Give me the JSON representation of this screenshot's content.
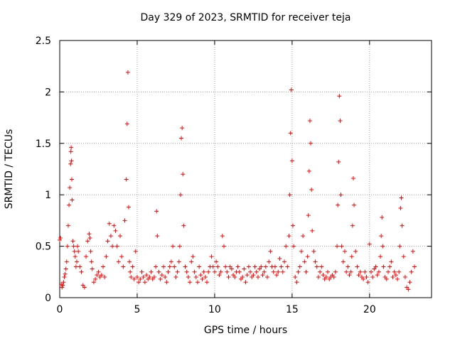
{
  "chart_data": {
    "type": "scatter",
    "title": "Day 329 of 2023, SRMTID for receiver teja",
    "xlabel": "GPS time / hours",
    "ylabel": "SRMTID / TECUs",
    "xlim": [
      0,
      24
    ],
    "ylim": [
      0,
      2.5
    ],
    "x_ticks": [
      0,
      5,
      10,
      15,
      20
    ],
    "x_tick_labels": [
      "0",
      "5",
      "10",
      "15",
      "20"
    ],
    "y_ticks": [
      0,
      0.5,
      1,
      1.5,
      2,
      2.5
    ],
    "y_tick_labels": [
      "0",
      "0.5",
      "1",
      "1.5",
      "2",
      "2.5"
    ],
    "grid": true,
    "marker": "+",
    "color": "#ff0000",
    "series": [
      {
        "name": "SRMTID",
        "x": [
          0.0,
          0.05,
          0.1,
          0.15,
          0.2,
          0.25,
          0.3,
          0.35,
          0.4,
          0.45,
          0.5,
          0.55,
          0.6,
          0.65,
          0.7,
          0.72,
          0.74,
          0.76,
          0.78,
          0.8,
          0.85,
          0.9,
          0.95,
          1.0,
          1.05,
          1.1,
          1.15,
          1.2,
          1.3,
          1.4,
          1.5,
          1.6,
          1.7,
          1.8,
          1.9,
          1.95,
          2.0,
          2.05,
          2.1,
          2.2,
          2.3,
          2.4,
          2.5,
          2.6,
          2.7,
          2.8,
          2.9,
          3.0,
          3.1,
          3.2,
          3.3,
          3.4,
          3.5,
          3.6,
          3.7,
          3.8,
          3.9,
          4.0,
          4.1,
          4.2,
          4.3,
          4.35,
          4.4,
          4.45,
          4.5,
          4.55,
          4.6,
          4.7,
          4.8,
          4.9,
          5.0,
          5.1,
          5.2,
          5.3,
          5.4,
          5.5,
          5.6,
          5.7,
          5.8,
          5.9,
          6.0,
          6.1,
          6.2,
          6.25,
          6.3,
          6.4,
          6.5,
          6.6,
          6.7,
          6.8,
          6.9,
          7.0,
          7.1,
          7.2,
          7.3,
          7.4,
          7.5,
          7.6,
          7.7,
          7.75,
          7.8,
          7.85,
          7.9,
          7.95,
          8.0,
          8.1,
          8.2,
          8.3,
          8.4,
          8.5,
          8.6,
          8.7,
          8.8,
          8.9,
          9.0,
          9.1,
          9.2,
          9.3,
          9.4,
          9.5,
          9.6,
          9.7,
          9.8,
          9.9,
          10.0,
          10.1,
          10.2,
          10.3,
          10.4,
          10.5,
          10.6,
          10.7,
          10.8,
          10.9,
          11.0,
          11.1,
          11.2,
          11.3,
          11.4,
          11.5,
          11.6,
          11.7,
          11.8,
          11.9,
          12.0,
          12.1,
          12.2,
          12.3,
          12.4,
          12.5,
          12.6,
          12.7,
          12.8,
          12.9,
          13.0,
          13.1,
          13.2,
          13.3,
          13.4,
          13.5,
          13.6,
          13.7,
          13.8,
          13.9,
          14.0,
          14.1,
          14.2,
          14.3,
          14.4,
          14.5,
          14.6,
          14.7,
          14.8,
          14.85,
          14.9,
          14.95,
          15.0,
          15.05,
          15.1,
          15.2,
          15.3,
          15.4,
          15.5,
          15.6,
          15.7,
          15.8,
          15.9,
          16.0,
          16.05,
          16.1,
          16.15,
          16.2,
          16.25,
          16.3,
          16.4,
          16.5,
          16.6,
          16.7,
          16.8,
          16.9,
          17.0,
          17.1,
          17.2,
          17.3,
          17.4,
          17.5,
          17.6,
          17.7,
          17.8,
          17.9,
          17.95,
          18.0,
          18.05,
          18.1,
          18.15,
          18.2,
          18.3,
          18.4,
          18.5,
          18.6,
          18.7,
          18.8,
          18.85,
          18.9,
          18.95,
          19.0,
          19.1,
          19.2,
          19.3,
          19.4,
          19.5,
          19.6,
          19.7,
          19.8,
          19.9,
          20.0,
          20.1,
          20.2,
          20.3,
          20.4,
          20.5,
          20.6,
          20.7,
          20.75,
          20.8,
          20.85,
          20.9,
          21.0,
          21.1,
          21.2,
          21.3,
          21.4,
          21.5,
          21.6,
          21.7,
          21.8,
          21.9,
          21.95,
          22.0,
          22.05,
          22.1,
          22.2,
          22.3,
          22.4,
          22.5,
          22.6,
          22.7,
          22.8,
          22.9
        ],
        "y": [
          0.56,
          0.58,
          0.13,
          0.1,
          0.12,
          0.15,
          0.2,
          0.23,
          0.28,
          0.35,
          0.5,
          0.7,
          0.9,
          1.07,
          1.3,
          1.42,
          1.46,
          1.33,
          1.15,
          0.95,
          0.55,
          0.5,
          0.45,
          0.4,
          0.3,
          0.35,
          0.5,
          0.45,
          0.3,
          0.25,
          0.12,
          0.1,
          0.4,
          0.55,
          0.62,
          0.58,
          0.45,
          0.35,
          0.28,
          0.15,
          0.18,
          0.22,
          0.25,
          0.2,
          0.22,
          0.3,
          0.2,
          0.4,
          0.55,
          0.72,
          0.6,
          0.5,
          0.7,
          0.65,
          0.5,
          0.35,
          0.6,
          0.4,
          0.3,
          0.75,
          1.15,
          1.69,
          2.19,
          0.88,
          0.35,
          0.25,
          0.2,
          0.3,
          0.18,
          0.45,
          0.2,
          0.15,
          0.18,
          0.25,
          0.2,
          0.15,
          0.22,
          0.18,
          0.2,
          0.25,
          0.18,
          0.2,
          0.3,
          0.84,
          0.6,
          0.25,
          0.18,
          0.22,
          0.3,
          0.2,
          0.15,
          0.25,
          0.3,
          0.35,
          0.5,
          0.3,
          0.2,
          0.25,
          0.35,
          0.5,
          1.0,
          1.55,
          1.65,
          1.2,
          0.7,
          0.3,
          0.25,
          0.2,
          0.15,
          0.35,
          0.4,
          0.25,
          0.2,
          0.15,
          0.3,
          0.22,
          0.18,
          0.25,
          0.2,
          0.15,
          0.25,
          0.3,
          0.4,
          0.3,
          0.25,
          0.35,
          0.3,
          0.22,
          0.25,
          0.6,
          0.5,
          0.3,
          0.25,
          0.2,
          0.3,
          0.28,
          0.22,
          0.2,
          0.25,
          0.3,
          0.25,
          0.18,
          0.2,
          0.28,
          0.15,
          0.22,
          0.3,
          0.25,
          0.2,
          0.22,
          0.3,
          0.25,
          0.2,
          0.28,
          0.3,
          0.22,
          0.25,
          0.3,
          0.2,
          0.35,
          0.45,
          0.3,
          0.25,
          0.3,
          0.22,
          0.25,
          0.38,
          0.3,
          0.25,
          0.35,
          0.5,
          0.3,
          0.6,
          1.0,
          1.6,
          2.02,
          1.33,
          0.7,
          0.5,
          0.2,
          0.15,
          0.25,
          0.3,
          0.45,
          0.6,
          0.35,
          0.25,
          0.4,
          0.8,
          1.23,
          1.72,
          1.5,
          1.05,
          0.65,
          0.45,
          0.35,
          0.3,
          0.2,
          0.25,
          0.3,
          0.22,
          0.18,
          0.2,
          0.25,
          0.18,
          0.2,
          0.22,
          0.2,
          0.25,
          0.5,
          0.9,
          1.32,
          1.96,
          1.72,
          1.0,
          0.5,
          0.35,
          0.45,
          0.25,
          0.3,
          0.22,
          0.25,
          0.4,
          0.7,
          1.16,
          0.9,
          0.45,
          0.3,
          0.22,
          0.25,
          0.2,
          0.18,
          0.25,
          0.2,
          0.15,
          0.52,
          0.25,
          0.2,
          0.28,
          0.3,
          0.22,
          0.25,
          0.4,
          0.6,
          0.78,
          0.5,
          0.3,
          0.2,
          0.18,
          0.25,
          0.3,
          0.35,
          0.2,
          0.25,
          0.22,
          0.18,
          0.25,
          0.5,
          0.87,
          0.97,
          0.7,
          0.4,
          0.2,
          0.1,
          0.08,
          0.15,
          0.25,
          0.45,
          0.3
        ]
      }
    ]
  }
}
